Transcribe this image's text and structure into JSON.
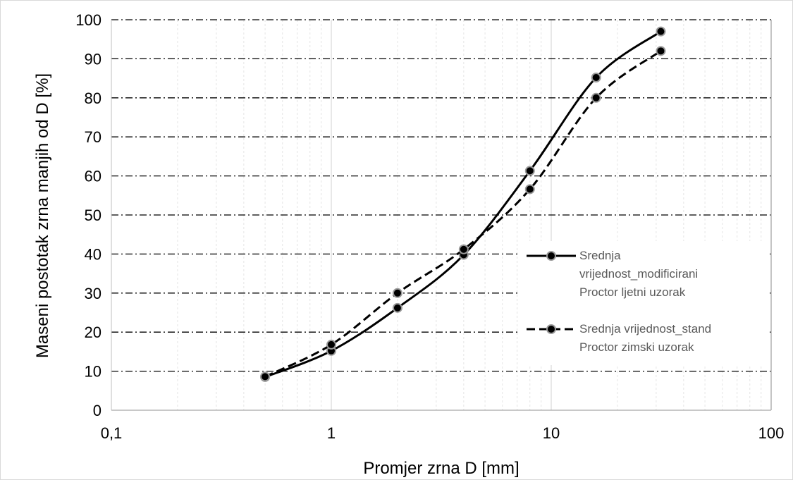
{
  "chart_data": {
    "type": "line",
    "x_scale": "log",
    "xlim": [
      0.1,
      100
    ],
    "ylim": [
      0,
      100
    ],
    "xlabel": "Promjer zrna D [mm]",
    "ylabel": "Maseni postotak zrna manjih od D [%]",
    "x_tick_labels": [
      "0,1",
      "1",
      "10",
      "100"
    ],
    "x_ticks": [
      0.1,
      1,
      10,
      100
    ],
    "y_ticks": [
      0,
      10,
      20,
      30,
      40,
      50,
      60,
      70,
      80,
      90,
      100
    ],
    "y_tick_labels": [
      "0",
      "10",
      "20",
      "30",
      "40",
      "50",
      "60",
      "70",
      "80",
      "90",
      "100"
    ],
    "grid": "on",
    "legend_position": "right",
    "series": [
      {
        "name_lines": [
          "Srednja",
          "vrijednost_modificirani",
          "Proctor ljetni uzorak"
        ],
        "line_style": "solid",
        "color": "#000000",
        "x": [
          0.5,
          1,
          2,
          4,
          8,
          16,
          31.5
        ],
        "y": [
          8.5,
          15.2,
          26.2,
          39.8,
          61.3,
          85.2,
          97
        ]
      },
      {
        "name_lines": [
          "Srednja vrijednost_stand",
          "Proctor zimski uzorak"
        ],
        "line_style": "dashed",
        "color": "#000000",
        "x": [
          0.5,
          1,
          2,
          4,
          8,
          16,
          31.5
        ],
        "y": [
          8.6,
          16.8,
          30,
          41.2,
          56.6,
          80,
          92
        ]
      }
    ]
  }
}
